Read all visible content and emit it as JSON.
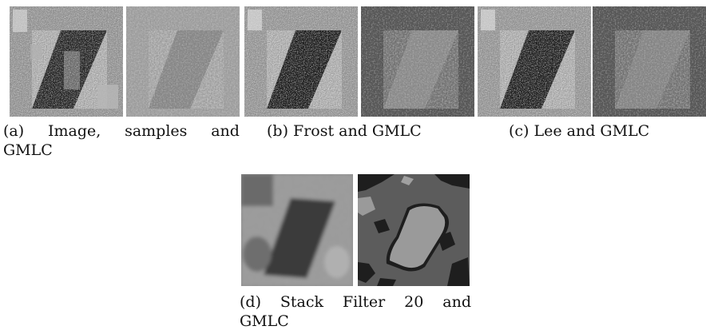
{
  "figure": {
    "captions": {
      "a_line1": [
        "(a)",
        "Image,",
        "samples",
        "and"
      ],
      "a_line2": "GMLC",
      "b": "(b) Frost and GMLC",
      "c": "(c) Lee and GMLC",
      "d_line1": [
        "(d)",
        "Stack",
        "Filter",
        "20",
        "and"
      ],
      "d_line2": "GMLC"
    },
    "panels": [
      {
        "id": "a-image",
        "kind": "speckled SAR image with samples"
      },
      {
        "id": "a-gmlc",
        "kind": "classification map"
      },
      {
        "id": "b-frost",
        "kind": "filtered image"
      },
      {
        "id": "b-gmlc",
        "kind": "classification map"
      },
      {
        "id": "c-lee",
        "kind": "filtered image"
      },
      {
        "id": "c-gmlc",
        "kind": "classification map"
      },
      {
        "id": "d-stack",
        "kind": "filtered image"
      },
      {
        "id": "d-gmlc",
        "kind": "classification map"
      }
    ],
    "colors": {
      "bright_region": "#c8c8c8",
      "dark_region": "#2a2a2a",
      "map_background": "#5a5a5a",
      "map_region": "#8f8f8f",
      "map_dark_class": "#1e1e1e"
    }
  }
}
